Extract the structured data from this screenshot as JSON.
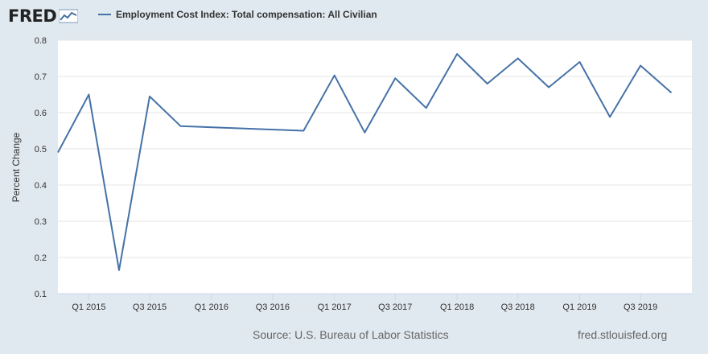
{
  "logo": {
    "text": "FRED"
  },
  "colors": {
    "background": "#e1e9f0",
    "plot_bg": "#ffffff",
    "series": "#4572a7",
    "grid": "#e6e6e6"
  },
  "footer": {
    "source": "Source: U.S. Bureau of Labor Statistics",
    "site": "fred.stlouisfed.org"
  },
  "chart_data": {
    "type": "line",
    "title": "",
    "xlabel": "",
    "ylabel": "Percent Change",
    "ylim": [
      0.1,
      0.8
    ],
    "yticks": [
      "0.1",
      "0.2",
      "0.3",
      "0.4",
      "0.5",
      "0.6",
      "0.7",
      "0.8"
    ],
    "xlim": [
      "2014-10-01",
      "2019-12-01"
    ],
    "xticks": [
      {
        "date": "2015-01-01",
        "label": "Q1 2015"
      },
      {
        "date": "2015-07-01",
        "label": "Q3 2015"
      },
      {
        "date": "2016-01-01",
        "label": "Q1 2016"
      },
      {
        "date": "2016-07-01",
        "label": "Q3 2016"
      },
      {
        "date": "2017-01-01",
        "label": "Q1 2017"
      },
      {
        "date": "2017-07-01",
        "label": "Q3 2017"
      },
      {
        "date": "2018-01-01",
        "label": "Q1 2018"
      },
      {
        "date": "2018-07-01",
        "label": "Q3 2018"
      },
      {
        "date": "2019-01-01",
        "label": "Q1 2019"
      },
      {
        "date": "2019-07-01",
        "label": "Q3 2019"
      }
    ],
    "grid": true,
    "legend": "top-left",
    "series": [
      {
        "name": "Employment Cost Index: Total compensation: All Civilian",
        "color": "#4572a7",
        "x": [
          "2014-10-01",
          "2015-01-01",
          "2015-04-01",
          "2015-07-01",
          "2015-10-01",
          "2016-10-01",
          "2017-01-01",
          "2017-04-01",
          "2017-07-01",
          "2017-10-01",
          "2018-01-01",
          "2018-04-01",
          "2018-07-01",
          "2018-10-01",
          "2019-01-01",
          "2019-04-01",
          "2019-07-01",
          "2019-10-01"
        ],
        "values": [
          0.49,
          0.65,
          0.165,
          0.645,
          0.563,
          0.55,
          0.703,
          0.545,
          0.695,
          0.613,
          0.762,
          0.68,
          0.75,
          0.67,
          0.74,
          0.588,
          0.73,
          0.655
        ]
      }
    ]
  }
}
